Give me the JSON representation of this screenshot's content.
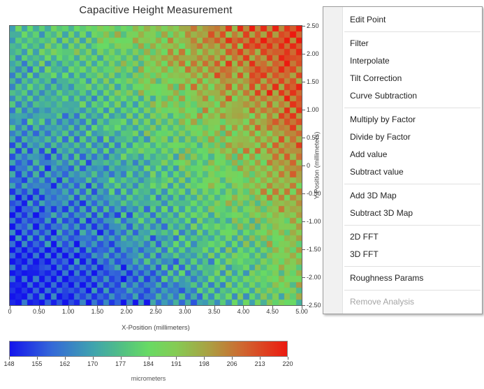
{
  "chart_data": {
    "type": "heatmap",
    "title": "Capacitive Height Measurement",
    "xlabel": "X-Position (millimeters)",
    "ylabel": "Y-Position (millimeters)",
    "x_range": [
      0,
      5
    ],
    "y_range": [
      -2.5,
      2.5
    ],
    "x_ticks": [
      "0",
      "0.50",
      "1.00",
      "1.50",
      "2.00",
      "2.50",
      "3.00",
      "3.50",
      "4.00",
      "4.50",
      "5.00"
    ],
    "y_ticks": [
      "2.50",
      "2.00",
      "1.50",
      "1.00",
      "0.50",
      "0",
      "-0.50",
      "-1.00",
      "-1.50",
      "-2.00",
      "-2.50"
    ],
    "grid": {
      "cols": 50,
      "rows": 48
    },
    "value_range": [
      148,
      220
    ],
    "coarse_grid": {
      "x": [
        0,
        0.5,
        1.0,
        1.5,
        2.0,
        2.5,
        3.0,
        3.5,
        4.0,
        4.5,
        5.0
      ],
      "y": [
        2.5,
        2.0,
        1.5,
        1.0,
        0.5,
        0.0,
        -0.5,
        -1.0,
        -1.5,
        -2.0,
        -2.5
      ],
      "values": [
        [
          176,
          178,
          181,
          184,
          188,
          193,
          198,
          204,
          208,
          212,
          214
        ],
        [
          174,
          176,
          179,
          182,
          186,
          191,
          196,
          202,
          206,
          210,
          213
        ],
        [
          172,
          174,
          176,
          179,
          183,
          187,
          192,
          198,
          203,
          207,
          210
        ],
        [
          169,
          171,
          173,
          176,
          180,
          184,
          188,
          193,
          198,
          203,
          207
        ],
        [
          166,
          168,
          170,
          173,
          177,
          181,
          185,
          189,
          194,
          199,
          204
        ],
        [
          163,
          165,
          167,
          170,
          174,
          178,
          182,
          186,
          191,
          196,
          201
        ],
        [
          160,
          162,
          164,
          167,
          171,
          175,
          179,
          183,
          188,
          193,
          198
        ],
        [
          157,
          159,
          161,
          164,
          168,
          172,
          176,
          180,
          185,
          190,
          195
        ],
        [
          154,
          156,
          158,
          161,
          165,
          169,
          173,
          177,
          182,
          187,
          192
        ],
        [
          151,
          153,
          155,
          158,
          162,
          166,
          170,
          175,
          180,
          185,
          189
        ],
        [
          149,
          151,
          153,
          156,
          159,
          163,
          167,
          172,
          177,
          182,
          187
        ]
      ]
    },
    "noise": {
      "checker": 7,
      "random": 6,
      "seed": 1337
    },
    "colormap": {
      "stops": [
        {
          "t": 0.0,
          "c": "#1414ec"
        },
        {
          "t": 0.15,
          "c": "#3468d8"
        },
        {
          "t": 0.3,
          "c": "#3fa3ae"
        },
        {
          "t": 0.42,
          "c": "#55c47e"
        },
        {
          "t": 0.5,
          "c": "#68da64"
        },
        {
          "t": 0.6,
          "c": "#85cb54"
        },
        {
          "t": 0.72,
          "c": "#ab9f42"
        },
        {
          "t": 0.84,
          "c": "#cf6730"
        },
        {
          "t": 1.0,
          "c": "#ec1a10"
        }
      ]
    },
    "colorbar": {
      "ticks": [
        "148",
        "155",
        "162",
        "170",
        "177",
        "184",
        "191",
        "198",
        "206",
        "213",
        "220"
      ],
      "label": "micrometers"
    }
  },
  "menu": {
    "groups": [
      {
        "items": [
          {
            "label": "Edit Point",
            "enabled": true
          }
        ]
      },
      {
        "items": [
          {
            "label": "Filter",
            "enabled": true
          },
          {
            "label": "Interpolate",
            "enabled": true
          },
          {
            "label": "Tilt Correction",
            "enabled": true
          },
          {
            "label": "Curve Subtraction",
            "enabled": true
          }
        ]
      },
      {
        "items": [
          {
            "label": "Multiply by Factor",
            "enabled": true
          },
          {
            "label": "Divide by Factor",
            "enabled": true
          },
          {
            "label": "Add value",
            "enabled": true
          },
          {
            "label": "Subtract value",
            "enabled": true
          }
        ]
      },
      {
        "items": [
          {
            "label": "Add 3D Map",
            "enabled": true
          },
          {
            "label": "Subtract 3D Map",
            "enabled": true
          }
        ]
      },
      {
        "items": [
          {
            "label": "2D FFT",
            "enabled": true
          },
          {
            "label": "3D FFT",
            "enabled": true
          }
        ]
      },
      {
        "items": [
          {
            "label": "Roughness Params",
            "enabled": true
          }
        ]
      },
      {
        "items": [
          {
            "label": "Remove Analysis",
            "enabled": false
          }
        ]
      }
    ]
  }
}
